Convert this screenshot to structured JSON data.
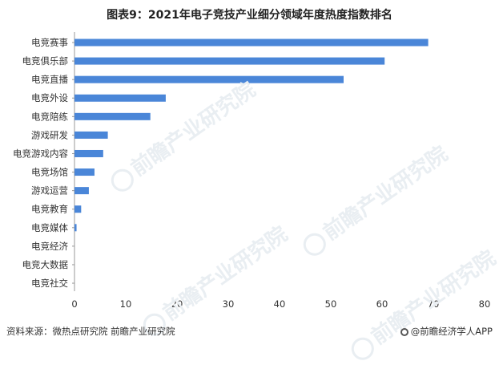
{
  "title": "图表9：2021年电子竞技产业细分领域年度热度指数排名",
  "watermark": "前瞻产业研究院",
  "footer": {
    "source": "资料来源：微热点研究院 前瞻产业研究院",
    "brand": "@前瞻经济学人APP"
  },
  "colors": {
    "bar": "#4a86d8",
    "axis": "#999999"
  },
  "chart_data": {
    "type": "bar",
    "orientation": "horizontal",
    "categories": [
      "电竞赛事",
      "电竞俱乐部",
      "电竞直播",
      "电竞外设",
      "电竞陪练",
      "游戏研发",
      "电竞游戏内容",
      "电竞场馆",
      "游戏运营",
      "电竞教育",
      "电竞媒体",
      "电竞经济",
      "电竞大数据",
      "电竞社交"
    ],
    "values": [
      69,
      60.5,
      52.5,
      17.8,
      14.8,
      6.5,
      5.6,
      3.9,
      2.8,
      1.3,
      0.4,
      0,
      0,
      0
    ],
    "xlim": [
      0,
      80
    ],
    "xticks": [
      0,
      10,
      20,
      30,
      40,
      50,
      60,
      70,
      80
    ],
    "grid": false,
    "legend": "none"
  }
}
